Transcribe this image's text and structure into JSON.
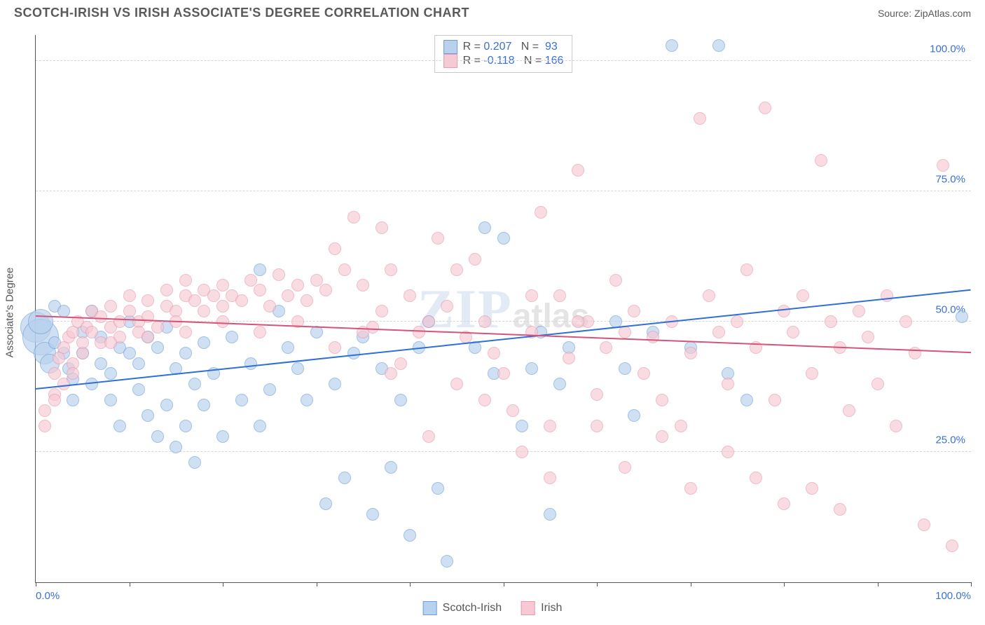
{
  "title": "SCOTCH-IRISH VS IRISH ASSOCIATE'S DEGREE CORRELATION CHART",
  "source": "Source: ZipAtlas.com",
  "ylabel": "Associate's Degree",
  "watermark": {
    "big": "ZIP",
    "tail": "atlas"
  },
  "chart": {
    "type": "scatter",
    "xlim": [
      0,
      100
    ],
    "ylim": [
      0,
      105
    ],
    "y_ticks": [
      25,
      50,
      75,
      100
    ],
    "y_tick_labels": [
      "25.0%",
      "50.0%",
      "75.0%",
      "100.0%"
    ],
    "x_ticks": [
      0,
      10,
      20,
      30,
      40,
      50,
      60,
      70,
      80,
      90,
      100
    ],
    "x_tick_labels": {
      "0": "0.0%",
      "100": "100.0%"
    },
    "background_color": "#ffffff",
    "grid_color": "#d6d6d6",
    "axis_color": "#555555",
    "tick_label_color": "#3b6fd6",
    "point_radius": 9,
    "series": [
      {
        "name": "Scotch-Irish",
        "fill": "#b8d1ee",
        "stroke": "#6f9fd8",
        "fill_opacity": 0.65,
        "R": "0.207",
        "N": "93",
        "trend": {
          "y_at_x0": 37,
          "y_at_x100": 56,
          "color": "#2f6fd6"
        },
        "points": [
          [
            0,
            49,
            22
          ],
          [
            0.5,
            47,
            26
          ],
          [
            0.5,
            50,
            18
          ],
          [
            1,
            44,
            16
          ],
          [
            1.5,
            42,
            14
          ],
          [
            2,
            53
          ],
          [
            2,
            46
          ],
          [
            3,
            44
          ],
          [
            3,
            52
          ],
          [
            3.5,
            41
          ],
          [
            4,
            39
          ],
          [
            4,
            35
          ],
          [
            5,
            48
          ],
          [
            5,
            44
          ],
          [
            6,
            52
          ],
          [
            6,
            38
          ],
          [
            7,
            47
          ],
          [
            7,
            42
          ],
          [
            8,
            40
          ],
          [
            8,
            35
          ],
          [
            9,
            45
          ],
          [
            9,
            30
          ],
          [
            10,
            50
          ],
          [
            10,
            44
          ],
          [
            11,
            42
          ],
          [
            11,
            37
          ],
          [
            12,
            47
          ],
          [
            12,
            32
          ],
          [
            13,
            45
          ],
          [
            13,
            28
          ],
          [
            14,
            49
          ],
          [
            14,
            34
          ],
          [
            15,
            41
          ],
          [
            15,
            26
          ],
          [
            16,
            44
          ],
          [
            16,
            30
          ],
          [
            17,
            38
          ],
          [
            17,
            23
          ],
          [
            18,
            46
          ],
          [
            18,
            34
          ],
          [
            19,
            40
          ],
          [
            20,
            28
          ],
          [
            21,
            47
          ],
          [
            22,
            35
          ],
          [
            23,
            42
          ],
          [
            24,
            60
          ],
          [
            24,
            30
          ],
          [
            25,
            37
          ],
          [
            26,
            52
          ],
          [
            27,
            45
          ],
          [
            28,
            41
          ],
          [
            29,
            35
          ],
          [
            30,
            48
          ],
          [
            31,
            15
          ],
          [
            32,
            38
          ],
          [
            33,
            20
          ],
          [
            34,
            44
          ],
          [
            35,
            47
          ],
          [
            36,
            13
          ],
          [
            37,
            41
          ],
          [
            38,
            22
          ],
          [
            39,
            35
          ],
          [
            40,
            9
          ],
          [
            41,
            45
          ],
          [
            42,
            50
          ],
          [
            43,
            18
          ],
          [
            44,
            4
          ],
          [
            47,
            45
          ],
          [
            48,
            68
          ],
          [
            49,
            40
          ],
          [
            50,
            66
          ],
          [
            52,
            30
          ],
          [
            53,
            41
          ],
          [
            54,
            48
          ],
          [
            55,
            13
          ],
          [
            56,
            38
          ],
          [
            57,
            45
          ],
          [
            62,
            50
          ],
          [
            63,
            41
          ],
          [
            64,
            32
          ],
          [
            66,
            48
          ],
          [
            68,
            103
          ],
          [
            70,
            45
          ],
          [
            73,
            103
          ],
          [
            74,
            40
          ],
          [
            76,
            35
          ],
          [
            99,
            51
          ]
        ]
      },
      {
        "name": "Irish",
        "fill": "#f6c9d4",
        "stroke": "#e79ab0",
        "fill_opacity": 0.65,
        "R": "-0.118",
        "N": "166",
        "trend": {
          "y_at_x0": 51,
          "y_at_x100": 44,
          "color": "#d6537a"
        },
        "points": [
          [
            1,
            30
          ],
          [
            1,
            33
          ],
          [
            2,
            36
          ],
          [
            2,
            40
          ],
          [
            2.5,
            43
          ],
          [
            3,
            38
          ],
          [
            3,
            45
          ],
          [
            3.5,
            47
          ],
          [
            4,
            42
          ],
          [
            4,
            48
          ],
          [
            4.5,
            50
          ],
          [
            5,
            44
          ],
          [
            5,
            46
          ],
          [
            5.5,
            49
          ],
          [
            6,
            52
          ],
          [
            6,
            48
          ],
          [
            7,
            51
          ],
          [
            7,
            46
          ],
          [
            8,
            53
          ],
          [
            8,
            49
          ],
          [
            9,
            50
          ],
          [
            9,
            47
          ],
          [
            10,
            55
          ],
          [
            10,
            52
          ],
          [
            11,
            50
          ],
          [
            11,
            48
          ],
          [
            12,
            54
          ],
          [
            12,
            51
          ],
          [
            13,
            49
          ],
          [
            14,
            56
          ],
          [
            14,
            53
          ],
          [
            15,
            52
          ],
          [
            15,
            50
          ],
          [
            16,
            55
          ],
          [
            16,
            58
          ],
          [
            17,
            54
          ],
          [
            18,
            52
          ],
          [
            18,
            56
          ],
          [
            19,
            55
          ],
          [
            20,
            57
          ],
          [
            20,
            53
          ],
          [
            21,
            55
          ],
          [
            22,
            54
          ],
          [
            23,
            58
          ],
          [
            24,
            56
          ],
          [
            25,
            53
          ],
          [
            26,
            59
          ],
          [
            27,
            55
          ],
          [
            28,
            57
          ],
          [
            29,
            54
          ],
          [
            30,
            58
          ],
          [
            31,
            56
          ],
          [
            32,
            64
          ],
          [
            33,
            60
          ],
          [
            34,
            70
          ],
          [
            35,
            57
          ],
          [
            36,
            49
          ],
          [
            37,
            52
          ],
          [
            37,
            68
          ],
          [
            38,
            60
          ],
          [
            39,
            42
          ],
          [
            40,
            55
          ],
          [
            41,
            48
          ],
          [
            42,
            50
          ],
          [
            43,
            66
          ],
          [
            44,
            53
          ],
          [
            45,
            38
          ],
          [
            46,
            47
          ],
          [
            47,
            62
          ],
          [
            48,
            50
          ],
          [
            49,
            44
          ],
          [
            50,
            40
          ],
          [
            51,
            33
          ],
          [
            52,
            25
          ],
          [
            53,
            48
          ],
          [
            54,
            71
          ],
          [
            55,
            30
          ],
          [
            56,
            55
          ],
          [
            57,
            43
          ],
          [
            58,
            79
          ],
          [
            59,
            50
          ],
          [
            60,
            36
          ],
          [
            61,
            45
          ],
          [
            62,
            58
          ],
          [
            63,
            48
          ],
          [
            64,
            52
          ],
          [
            65,
            40
          ],
          [
            66,
            47
          ],
          [
            67,
            35
          ],
          [
            68,
            50
          ],
          [
            69,
            30
          ],
          [
            70,
            44
          ],
          [
            71,
            89
          ],
          [
            72,
            55
          ],
          [
            73,
            48
          ],
          [
            74,
            38
          ],
          [
            75,
            50
          ],
          [
            76,
            60
          ],
          [
            77,
            45
          ],
          [
            78,
            91
          ],
          [
            79,
            35
          ],
          [
            80,
            52
          ],
          [
            81,
            48
          ],
          [
            82,
            55
          ],
          [
            83,
            40
          ],
          [
            84,
            81
          ],
          [
            85,
            50
          ],
          [
            86,
            45
          ],
          [
            87,
            33
          ],
          [
            88,
            52
          ],
          [
            89,
            47
          ],
          [
            90,
            38
          ],
          [
            91,
            55
          ],
          [
            92,
            30
          ],
          [
            93,
            50
          ],
          [
            94,
            44
          ],
          [
            95,
            11
          ],
          [
            97,
            80
          ],
          [
            98,
            7
          ],
          [
            86,
            14
          ],
          [
            83,
            18
          ],
          [
            80,
            15
          ],
          [
            77,
            20
          ],
          [
            74,
            25
          ],
          [
            70,
            18
          ],
          [
            67,
            28
          ],
          [
            63,
            22
          ],
          [
            60,
            30
          ],
          [
            55,
            20
          ],
          [
            58,
            50
          ],
          [
            53,
            55
          ],
          [
            48,
            35
          ],
          [
            45,
            60
          ],
          [
            42,
            28
          ],
          [
            38,
            40
          ],
          [
            35,
            48
          ],
          [
            32,
            45
          ],
          [
            28,
            50
          ],
          [
            24,
            48
          ],
          [
            20,
            50
          ],
          [
            16,
            48
          ],
          [
            12,
            47
          ],
          [
            8,
            46
          ],
          [
            4,
            40
          ],
          [
            2,
            35
          ]
        ]
      }
    ]
  },
  "legend_bottom": [
    {
      "label": "Scotch-Irish",
      "fill": "#b8d1ee",
      "stroke": "#6f9fd8"
    },
    {
      "label": "Irish",
      "fill": "#f6c9d4",
      "stroke": "#e79ab0"
    }
  ]
}
